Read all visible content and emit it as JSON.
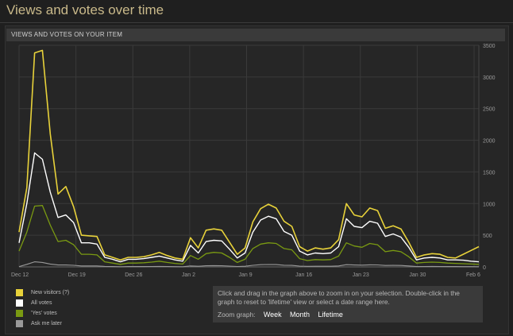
{
  "page": {
    "title": "Views and votes over time",
    "panel_title": "VIEWS AND VOTES ON YOUR ITEM"
  },
  "legend": [
    {
      "label": "New visitors (?)",
      "color": "#e8d23a"
    },
    {
      "label": "All votes",
      "color": "#ffffff"
    },
    {
      "label": "'Yes' votes",
      "color": "#7a9a12"
    },
    {
      "label": "Ask me later",
      "color": "#9a9a9a"
    }
  ],
  "info": {
    "text": "Click and drag in the graph above to zoom in on your selection. Double-click in the graph to reset to 'lifetime' view or select a date range here.",
    "zoom_label": "Zoom graph:",
    "zoom_options": [
      "Week",
      "Month",
      "Lifetime"
    ]
  },
  "chart_data": {
    "type": "line",
    "x_ticks": [
      "Dec 12",
      "Dec 19",
      "Dec 26",
      "Jan 2",
      "Jan 9",
      "Jan 16",
      "Jan 23",
      "Jan 30",
      "Feb 6"
    ],
    "y_ticks": [
      "0",
      "500",
      "1000",
      "1500",
      "2000",
      "2500",
      "3000",
      "3500"
    ],
    "ylim": [
      0,
      3500
    ],
    "x_start_label": "Dec 12",
    "x_end_label": "Feb 6",
    "grid": true,
    "series": [
      {
        "name": "New visitors (?)",
        "color": "#e8d23a",
        "width": 1.6,
        "values": [
          550,
          1250,
          3380,
          3420,
          2100,
          1150,
          1270,
          950,
          500,
          490,
          480,
          190,
          150,
          110,
          150,
          150,
          160,
          190,
          230,
          180,
          140,
          120,
          460,
          300,
          580,
          600,
          580,
          390,
          200,
          300,
          710,
          920,
          990,
          930,
          720,
          640,
          320,
          250,
          300,
          280,
          300,
          430,
          1000,
          820,
          790,
          930,
          890,
          610,
          650,
          600,
          390,
          150,
          190,
          210,
          200,
          150,
          140,
          200,
          260,
          320
        ]
      },
      {
        "name": "All votes",
        "color": "#ffffff",
        "width": 1.4,
        "values": [
          380,
          1000,
          1800,
          1700,
          1180,
          780,
          820,
          700,
          380,
          380,
          360,
          150,
          120,
          80,
          120,
          120,
          130,
          150,
          170,
          140,
          110,
          90,
          340,
          220,
          400,
          420,
          410,
          280,
          140,
          220,
          550,
          740,
          800,
          760,
          560,
          500,
          250,
          190,
          220,
          210,
          220,
          320,
          760,
          640,
          620,
          720,
          690,
          480,
          520,
          470,
          310,
          110,
          140,
          150,
          140,
          110,
          110,
          105,
          90,
          80
        ]
      },
      {
        "name": "'Yes' votes",
        "color": "#7a9a12",
        "width": 1.3,
        "values": [
          250,
          550,
          960,
          970,
          660,
          400,
          420,
          350,
          200,
          200,
          190,
          80,
          60,
          40,
          60,
          60,
          65,
          75,
          90,
          70,
          55,
          45,
          180,
          120,
          210,
          230,
          220,
          150,
          70,
          120,
          290,
          360,
          380,
          370,
          290,
          270,
          130,
          100,
          115,
          110,
          115,
          170,
          380,
          330,
          310,
          370,
          350,
          240,
          260,
          240,
          160,
          60,
          70,
          75,
          70,
          60,
          55,
          50,
          45,
          40
        ]
      },
      {
        "name": "Ask me later",
        "color": "#9a9a9a",
        "width": 1.1,
        "values": [
          5,
          40,
          80,
          70,
          45,
          30,
          30,
          25,
          15,
          15,
          15,
          8,
          5,
          3,
          5,
          5,
          5,
          6,
          7,
          6,
          4,
          3,
          15,
          10,
          18,
          20,
          18,
          12,
          6,
          10,
          25,
          35,
          38,
          36,
          26,
          24,
          12,
          9,
          10,
          10,
          10,
          15,
          35,
          30,
          28,
          33,
          31,
          22,
          24,
          22,
          15,
          5,
          6,
          7,
          6,
          5,
          5,
          4,
          4,
          3
        ]
      }
    ]
  }
}
